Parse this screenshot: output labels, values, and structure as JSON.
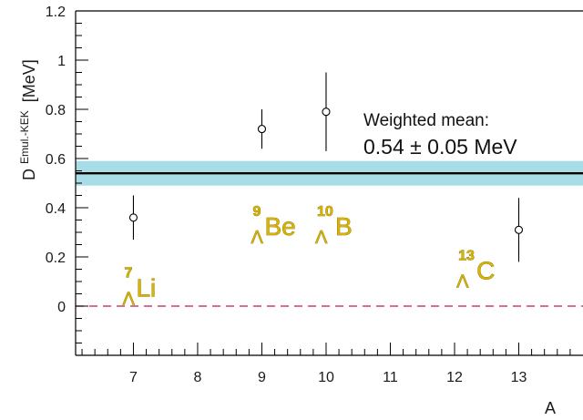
{
  "chart_data": {
    "type": "scatter",
    "xlabel": "A",
    "ylabel": {
      "main": "D",
      "superscript": "Emul.-KEK",
      "unit": "[MeV]"
    },
    "xlim": [
      6.1,
      14.0
    ],
    "ylim": [
      -0.2,
      1.2
    ],
    "xticks": [
      7,
      8,
      9,
      10,
      11,
      12,
      13
    ],
    "yticks": [
      0,
      0.2,
      0.4,
      0.6,
      0.8,
      1,
      1.2
    ],
    "ytick_labels": [
      "0",
      "0.2",
      "0.4",
      "0.6",
      "0.8",
      "1",
      "1.2"
    ],
    "grid": false,
    "points": [
      {
        "x": 7,
        "y": 0.36,
        "err_low": 0.09,
        "err_high": 0.09
      },
      {
        "x": 9,
        "y": 0.72,
        "err_low": 0.08,
        "err_high": 0.08
      },
      {
        "x": 10,
        "y": 0.79,
        "err_low": 0.16,
        "err_high": 0.16
      },
      {
        "x": 13,
        "y": 0.31,
        "err_low": 0.13,
        "err_high": 0.13
      }
    ],
    "mean_line": {
      "value": 0.54,
      "band_low": 0.49,
      "band_high": 0.59
    },
    "zero_line": {
      "value": 0,
      "style": "dashed"
    },
    "colors": {
      "band": "#a8dde8",
      "mean": "#000000",
      "zero": "#d04060",
      "nuclide": "#d8b400"
    },
    "annotations": {
      "mean_label": "Weighted mean:",
      "mean_value": "0.54 ± 0.05 MeV"
    },
    "nuclide_labels": [
      {
        "mass": "7",
        "hyperon": "Λ",
        "element": "Li",
        "x": 7.0,
        "y": 0.08
      },
      {
        "mass": "9",
        "hyperon": "Λ",
        "element": "Be",
        "x": 9.0,
        "y": 0.33
      },
      {
        "mass": "10",
        "hyperon": "Λ",
        "element": "B",
        "x": 10.0,
        "y": 0.33
      },
      {
        "mass": "13",
        "hyperon": "Λ",
        "element": "C",
        "x": 12.2,
        "y": 0.15
      }
    ]
  }
}
